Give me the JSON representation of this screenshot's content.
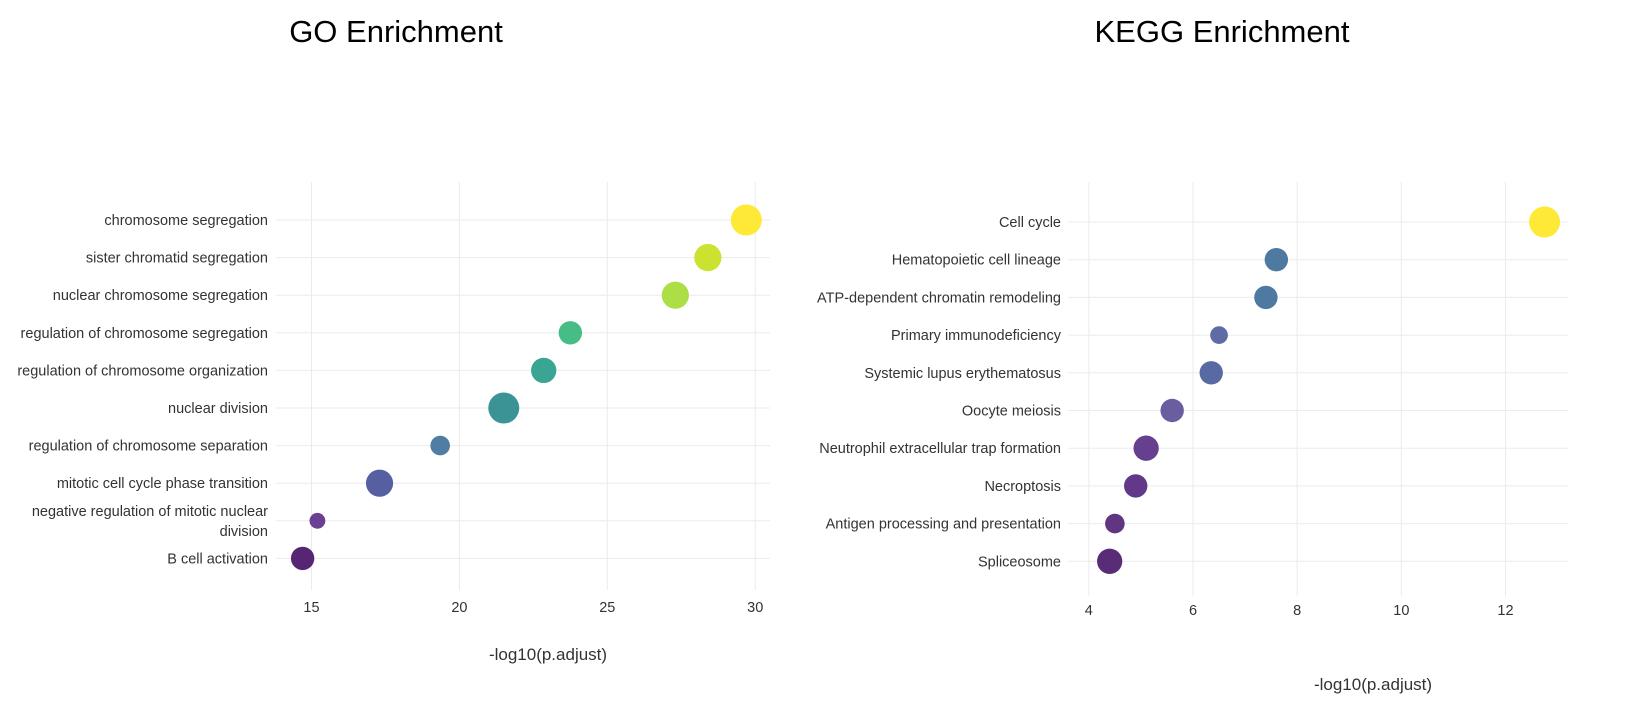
{
  "chart_data": [
    {
      "type": "scatter",
      "title": "GO Enrichment",
      "xlabel": "-log10(p.adjust)",
      "ylabel": "",
      "xlim": [
        13.8,
        30.5
      ],
      "xticks": [
        15,
        20,
        25,
        30
      ],
      "grid": true,
      "legend": "none",
      "categories": [
        "chromosome segregation",
        "sister chromatid segregation",
        "nuclear chromosome segregation",
        "regulation of chromosome segregation",
        "regulation of chromosome organization",
        "nuclear division",
        "regulation of chromosome separation",
        "mitotic cell cycle phase transition",
        "negative regulation of mitotic nuclear division",
        "B cell activation"
      ],
      "category_lines": [
        [
          "chromosome segregation"
        ],
        [
          "sister chromatid segregation"
        ],
        [
          "nuclear chromosome segregation"
        ],
        [
          "regulation of chromosome segregation"
        ],
        [
          "regulation of chromosome organization"
        ],
        [
          "nuclear division"
        ],
        [
          "regulation of chromosome separation"
        ],
        [
          "mitotic cell cycle phase transition"
        ],
        [
          "negative regulation of mitotic nuclear",
          "division"
        ],
        [
          "B cell activation"
        ]
      ],
      "x": [
        29.7,
        28.4,
        27.3,
        23.75,
        22.85,
        21.5,
        19.35,
        17.3,
        15.2,
        14.7
      ],
      "point_size_level": [
        5,
        4,
        4,
        3,
        3.5,
        5,
        2,
        4,
        1,
        3
      ],
      "colors": [
        "#fde725",
        "#c8e020",
        "#a5db36",
        "#35b779",
        "#2a9d8a",
        "#2a8a8d",
        "#40729b",
        "#47519a",
        "#5e2f88",
        "#481467"
      ]
    },
    {
      "type": "scatter",
      "title": "KEGG Enrichment",
      "xlabel": "-log10(p.adjust)",
      "ylabel": "",
      "xlim": [
        3.6,
        13.2
      ],
      "xticks": [
        4,
        6,
        8,
        10,
        12
      ],
      "grid": true,
      "legend": "none",
      "categories": [
        "Cell cycle",
        "Hematopoietic cell lineage",
        "ATP-dependent chromatin remodeling",
        "Primary immunodeficiency",
        "Systemic lupus erythematosus",
        "Oocyte meiosis",
        "Neutrophil extracellular trap formation",
        "Necroptosis",
        "Antigen processing and presentation",
        "Spliceosome"
      ],
      "category_lines": [
        [
          "Cell cycle"
        ],
        [
          "Hematopoietic cell lineage"
        ],
        [
          "ATP-dependent chromatin remodeling"
        ],
        [
          "Primary immunodeficiency"
        ],
        [
          "Systemic lupus erythematosus"
        ],
        [
          "Oocyte meiosis"
        ],
        [
          "Neutrophil extracellular trap formation"
        ],
        [
          "Necroptosis"
        ],
        [
          "Antigen processing and presentation"
        ],
        [
          "Spliceosome"
        ]
      ],
      "x": [
        12.75,
        7.6,
        7.4,
        6.5,
        6.35,
        5.6,
        5.1,
        4.9,
        4.5,
        4.4
      ],
      "point_size_level": [
        5,
        3,
        3,
        1.5,
        3,
        3,
        3.5,
        3,
        2,
        3.5
      ],
      "colors": [
        "#fde725",
        "#3f6e98",
        "#3f6e98",
        "#505f9e",
        "#4a5c9b",
        "#5d4f98",
        "#5a2f88",
        "#55287f",
        "#522577",
        "#4b1a6c"
      ]
    }
  ]
}
